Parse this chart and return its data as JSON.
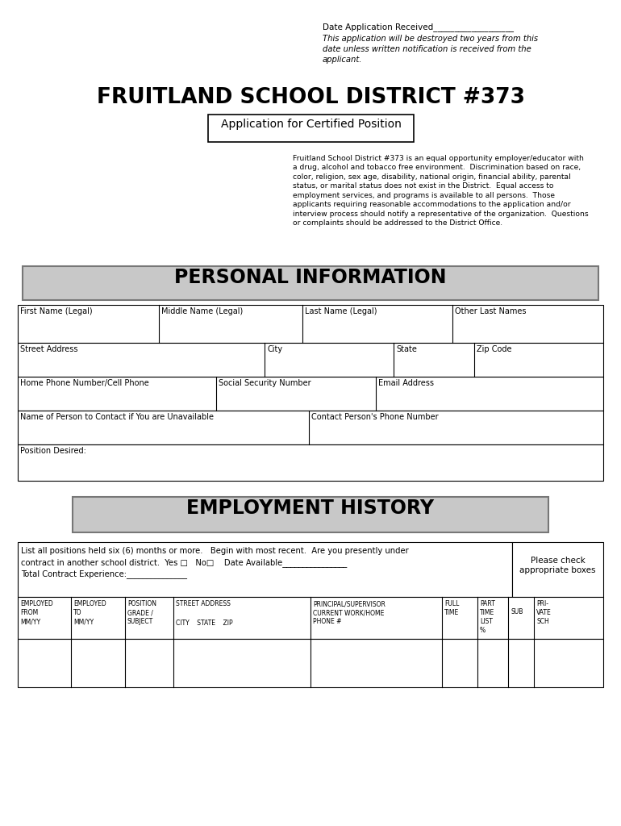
{
  "bg_color": "#ffffff",
  "title": "FRUITLAND SCHOOL DISTRICT #373",
  "subtitle": "Application for Certified Position",
  "date_line": "Date Application Received___________________",
  "italic_text": "This application will be destroyed two years from this\ndate unless written notification is received from the\napplicant.",
  "eq_opp_text": "Fruitland School District #373 is an equal opportunity employer/educator with\na drug, alcohol and tobacco free environment.  Discrimination based on race,\ncolor, religion, sex age, disability, national origin, financial ability, parental\nstatus, or marital status does not exist in the District.  Equal access to\nemployment services, and programs is available to all persons.  Those\napplicants requiring reasonable accommodations to the application and/or\ninterview process should notify a representative of the organization.  Questions\nor complaints should be addressed to the District Office.",
  "section1": "PERSONAL INFORMATION",
  "section2": "EMPLOYMENT HISTORY",
  "personal_rows": [
    [
      "First Name (Legal)",
      "Middle Name (Legal)",
      "Last Name (Legal)",
      "Other Last Names"
    ],
    [
      "Street Address",
      "City",
      "State",
      "Zip Code"
    ],
    [
      "Home Phone Number/Cell Phone",
      "Social Security Number",
      "Email Address"
    ],
    [
      "Name of Person to Contact if You are Unavailable",
      "Contact Person's Phone Number"
    ],
    [
      "Position Desired:"
    ]
  ],
  "emp_instruction_1": "List all positions held six (6) months or more.   Begin with most recent.  Are you presently under",
  "emp_instruction_2": "contract in another school district.  Yes □   No□    Date Available________________",
  "emp_instruction_3": "Total Contract Experience:_______________",
  "please_check": "Please check\nappropriate boxes"
}
